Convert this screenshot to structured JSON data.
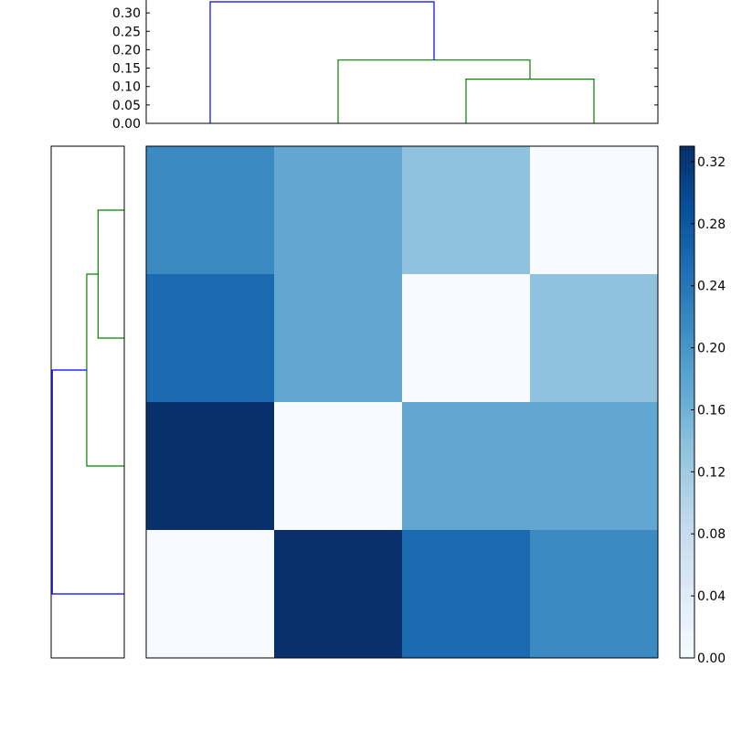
{
  "chart_data": {
    "type": "heatmap",
    "title": "",
    "colormap": "Blues",
    "colormap_min_color": "#f7fbff",
    "colormap_max_color": "#08306b",
    "matrix_rows_top_to_bottom": [
      [
        0.215,
        0.175,
        0.135,
        0.0
      ],
      [
        0.255,
        0.175,
        0.0,
        0.135
      ],
      [
        0.33,
        0.0,
        0.175,
        0.175
      ],
      [
        0.0,
        0.33,
        0.255,
        0.215
      ]
    ],
    "colorbar": {
      "vmin": 0.0,
      "vmax": 0.33,
      "ticks": [
        0.0,
        0.04,
        0.08,
        0.12,
        0.16,
        0.2,
        0.24,
        0.28,
        0.32
      ],
      "tick_labels": [
        "0.00",
        "0.04",
        "0.08",
        "0.12",
        "0.16",
        "0.20",
        "0.24",
        "0.28",
        "0.32"
      ]
    },
    "top_dendrogram": {
      "leaf_count": 4,
      "ylim": [
        0.0,
        0.335
      ],
      "ticks": [
        0.0,
        0.05,
        0.1,
        0.15,
        0.2,
        0.25,
        0.3
      ],
      "tick_labels": [
        "0.00",
        "0.05",
        "0.10",
        "0.15",
        "0.20",
        "0.25",
        "0.30"
      ],
      "links": [
        {
          "left": 2,
          "right": 3,
          "height": 0.12,
          "color": "#008000"
        },
        {
          "left": 1,
          "right": 2.5,
          "height": 0.172,
          "color": "#008000"
        },
        {
          "left": 0,
          "right": 1.75,
          "height": 0.33,
          "color": "#0000ff"
        }
      ]
    },
    "left_dendrogram": {
      "leaf_count": 4,
      "xlim": [
        0.0,
        0.335
      ],
      "links": [
        {
          "top": 0,
          "bottom": 1,
          "height": 0.12,
          "color": "#008000"
        },
        {
          "top": 0.5,
          "bottom": 2,
          "height": 0.172,
          "color": "#008000"
        },
        {
          "top": 1.25,
          "bottom": 3,
          "height": 0.33,
          "color": "#0000ff"
        }
      ]
    }
  }
}
